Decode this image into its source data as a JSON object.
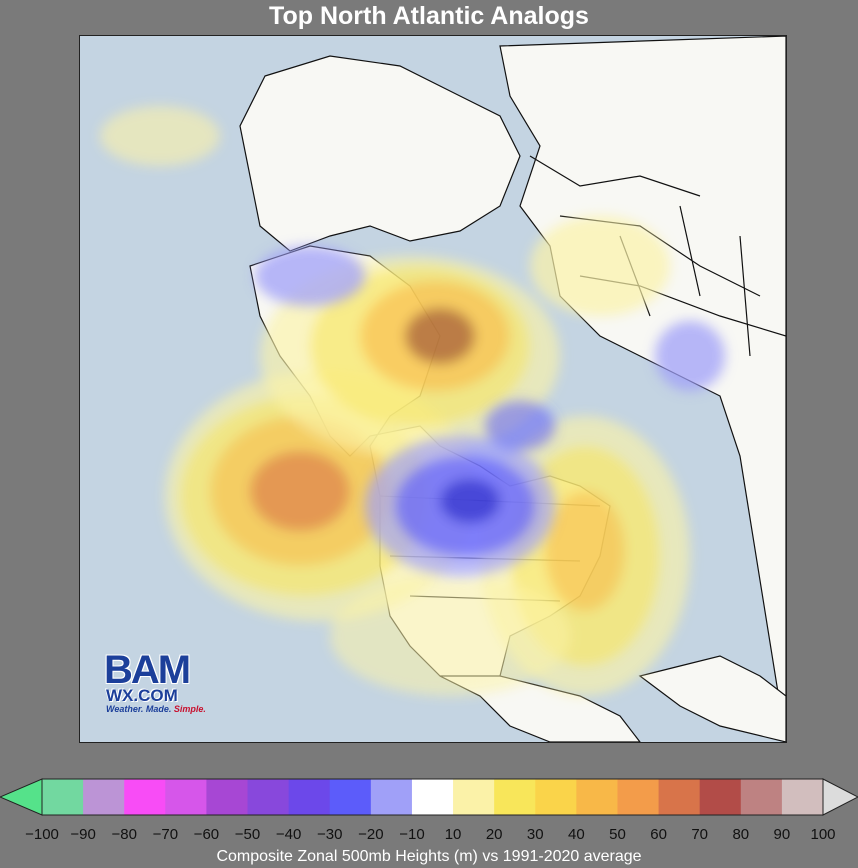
{
  "title": "Top North Atlantic Analogs",
  "logo": {
    "brand": "BAM",
    "site": "WX.COM",
    "tagline_a": "Weather. Made. ",
    "tagline_b": "Simple."
  },
  "colorbar": {
    "label": "Composite Zonal 500mb Heights (m) vs 1991-2020 average",
    "ticks": [
      "−100",
      "−90",
      "−80",
      "−70",
      "−60",
      "−50",
      "−40",
      "−30",
      "−20",
      "−10",
      "10",
      "20",
      "30",
      "40",
      "50",
      "60",
      "70",
      "80",
      "90",
      "100"
    ],
    "min_color": "#55e28a",
    "max_color": "#dcdcdc",
    "colors": [
      "#72d8a0",
      "#bc94d6",
      "#f84cf6",
      "#d656ea",
      "#a747d4",
      "#8848dc",
      "#6c48ea",
      "#5c5cfa",
      "#a0a0f8",
      "#ffffff",
      "#fbf2a8",
      "#f8e65a",
      "#fad44a",
      "#f8b848",
      "#f39c4a",
      "#d8744a",
      "#b24c48",
      "#be8282",
      "#d2bebe"
    ]
  },
  "map": {
    "ocean_color": "#c4d4e2",
    "land_color": "#f8f8f4",
    "positive_colors": [
      "#fbf2a8",
      "#f8e65a",
      "#fad44a",
      "#f8b848",
      "#d8744a",
      "#8a3c32"
    ],
    "negative_colors": [
      "#a0a0f8",
      "#5c5cfa",
      "#2c2cc8"
    ]
  }
}
